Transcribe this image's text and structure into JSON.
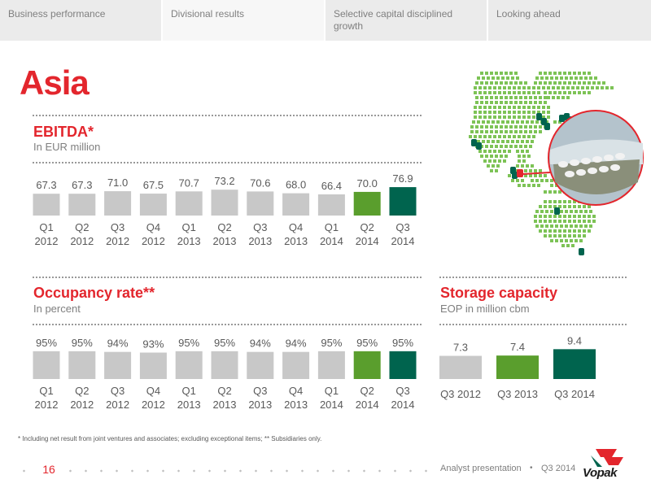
{
  "tabs": [
    {
      "label": "Business performance",
      "active": false
    },
    {
      "label": "Divisional results",
      "active": true
    },
    {
      "label": "Selective capital disciplined growth",
      "active": false
    },
    {
      "label": "Looking ahead",
      "active": false
    }
  ],
  "page_title": "Asia",
  "colors": {
    "accent_red": "#e3262d",
    "bar_gray": "#c8c8c8",
    "bar_green_light": "#5a9e2d",
    "bar_green_dark": "#00644e",
    "map_dots": "#7dc356"
  },
  "sections": {
    "ebitda": {
      "title": "EBITDA*",
      "subtitle": "In EUR million"
    },
    "occupancy": {
      "title": "Occupancy rate**",
      "subtitle": "In percent"
    },
    "storage": {
      "title": "Storage capacity",
      "subtitle": "EOP in million cbm"
    }
  },
  "chart_data": [
    {
      "type": "bar",
      "title": "EBITDA*",
      "subtitle": "In EUR million",
      "categories": [
        "Q1 2012",
        "Q2 2012",
        "Q3 2012",
        "Q4 2012",
        "Q1 2013",
        "Q2 2013",
        "Q3 2013",
        "Q4 2013",
        "Q1 2014",
        "Q2 2014",
        "Q3 2014"
      ],
      "category_lines": [
        [
          "Q1",
          "2012"
        ],
        [
          "Q2",
          "2012"
        ],
        [
          "Q3",
          "2012"
        ],
        [
          "Q4",
          "2012"
        ],
        [
          "Q1",
          "2013"
        ],
        [
          "Q2",
          "2013"
        ],
        [
          "Q3",
          "2013"
        ],
        [
          "Q4",
          "2013"
        ],
        [
          "Q1",
          "2014"
        ],
        [
          "Q2",
          "2014"
        ],
        [
          "Q3",
          "2014"
        ]
      ],
      "values": [
        67.3,
        67.3,
        71.0,
        67.5,
        70.7,
        73.2,
        70.6,
        68.0,
        66.4,
        70.0,
        76.9
      ],
      "value_labels": [
        "67.3",
        "67.3",
        "71.0",
        "67.5",
        "70.7",
        "73.2",
        "70.6",
        "68.0",
        "66.4",
        "70.0",
        "76.9"
      ],
      "bar_colors": [
        "#c8c8c8",
        "#c8c8c8",
        "#c8c8c8",
        "#c8c8c8",
        "#c8c8c8",
        "#c8c8c8",
        "#c8c8c8",
        "#c8c8c8",
        "#c8c8c8",
        "#5a9e2d",
        "#00644e"
      ],
      "ylim": [
        64,
        77
      ],
      "grid": false,
      "legend": "none"
    },
    {
      "type": "bar",
      "title": "Occupancy rate**",
      "subtitle": "In percent",
      "categories": [
        "Q1 2012",
        "Q2 2012",
        "Q3 2012",
        "Q4 2012",
        "Q1 2013",
        "Q2 2013",
        "Q3 2013",
        "Q4 2013",
        "Q1 2014",
        "Q2 2014",
        "Q3 2014"
      ],
      "category_lines": [
        [
          "Q1",
          "2012"
        ],
        [
          "Q2",
          "2012"
        ],
        [
          "Q3",
          "2012"
        ],
        [
          "Q4",
          "2012"
        ],
        [
          "Q1",
          "2013"
        ],
        [
          "Q2",
          "2013"
        ],
        [
          "Q3",
          "2013"
        ],
        [
          "Q4",
          "2013"
        ],
        [
          "Q1",
          "2014"
        ],
        [
          "Q2",
          "2014"
        ],
        [
          "Q3",
          "2014"
        ]
      ],
      "values": [
        95,
        95,
        94,
        93,
        95,
        95,
        94,
        94,
        95,
        95,
        95
      ],
      "value_labels": [
        "95%",
        "95%",
        "94%",
        "93%",
        "95%",
        "95%",
        "94%",
        "94%",
        "95%",
        "95%",
        "95%"
      ],
      "bar_colors": [
        "#c8c8c8",
        "#c8c8c8",
        "#c8c8c8",
        "#c8c8c8",
        "#c8c8c8",
        "#c8c8c8",
        "#c8c8c8",
        "#c8c8c8",
        "#c8c8c8",
        "#5a9e2d",
        "#00644e"
      ],
      "ylim": [
        90,
        96
      ],
      "grid": false,
      "legend": "none"
    },
    {
      "type": "bar",
      "title": "Storage capacity",
      "subtitle": "EOP in million cbm",
      "categories": [
        "Q3 2012",
        "Q3 2013",
        "Q3 2014"
      ],
      "values": [
        7.3,
        7.4,
        9.4
      ],
      "value_labels": [
        "7.3",
        "7.4",
        "9.4"
      ],
      "bar_colors": [
        "#c8c8c8",
        "#5a9e2d",
        "#00644e"
      ],
      "ylim": [
        0,
        10
      ],
      "grid": false,
      "legend": "none"
    }
  ],
  "footnote": "* Including net result from joint ventures and associates; excluding exceptional items; ** Subsidiaries only.",
  "footer": {
    "page_number": "16",
    "presentation": "Analyst presentation",
    "period": "Q3 2014",
    "logo_text": "Vopak"
  },
  "icons": {
    "map": "asia-pacific-map",
    "terminal": "storage-tank-icon",
    "photo": "terminal-photo"
  }
}
